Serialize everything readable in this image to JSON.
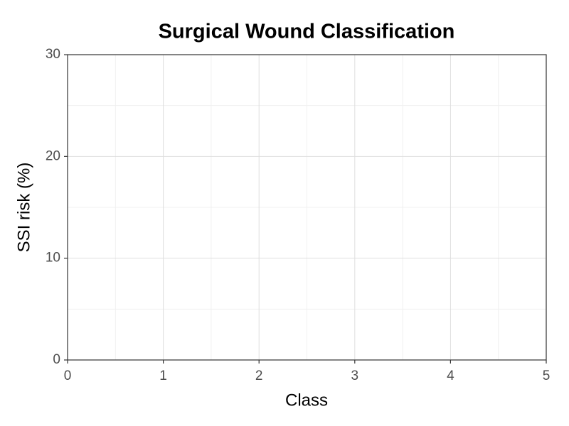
{
  "chart_data": {
    "type": "scatter",
    "title": "Surgical Wound Classification",
    "x_label": "Class",
    "y_label": "SSI risk (%)",
    "xlim": [
      0,
      5
    ],
    "xticks": [
      0,
      1,
      2,
      3,
      4,
      5
    ],
    "ylim": [
      0,
      30
    ],
    "yticks": [
      0,
      10,
      20,
      30
    ],
    "grid": true,
    "minor_grid": true
  }
}
